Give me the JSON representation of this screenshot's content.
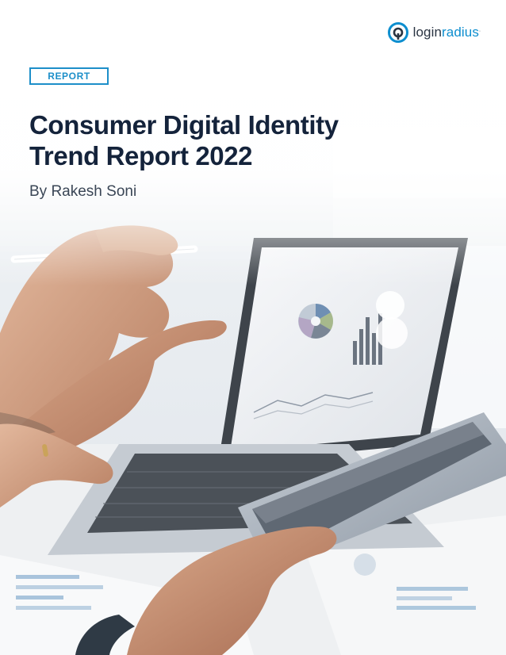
{
  "logo": {
    "icon": "loginradius-logo-icon",
    "name_part1": "login",
    "name_part2": "radius",
    "trademark": ".",
    "accent_color": "#0d8ecf"
  },
  "tag": {
    "label": "REPORT",
    "color": "#1d8fc9"
  },
  "title": {
    "line1": "Consumer Digital Identity",
    "line2": "Trend Report 2022",
    "color": "#14233b"
  },
  "author": "By Rakesh Soni",
  "background_photo": {
    "description_icon": "laptop-tablet-business-photo"
  }
}
